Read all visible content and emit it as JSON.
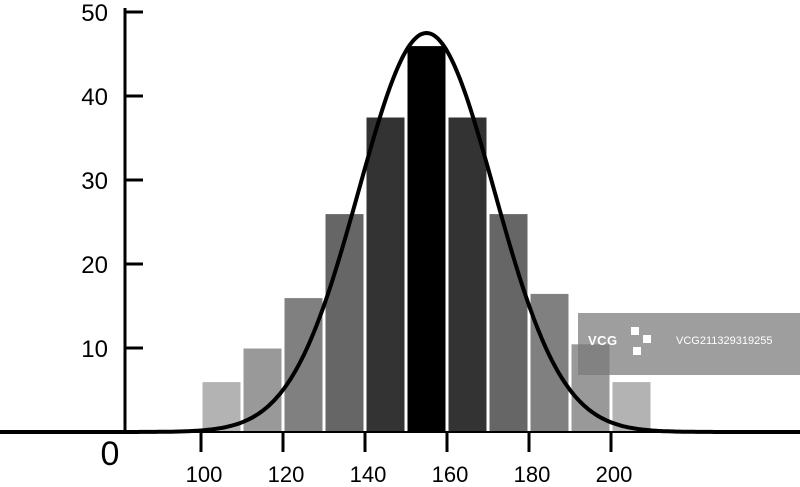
{
  "chart_data": {
    "type": "bar",
    "title": "",
    "xlabel": "",
    "ylabel": "",
    "origin_label": "0",
    "categories": [
      "105",
      "115",
      "125",
      "135",
      "145",
      "155",
      "165",
      "175",
      "185",
      "195",
      "205"
    ],
    "values": [
      6,
      10,
      16,
      26,
      37.5,
      46,
      37.5,
      26,
      16.5,
      10.5,
      6
    ],
    "bar_shades": [
      "#b3b3b3",
      "#999999",
      "#808080",
      "#666666",
      "#333333",
      "#000000",
      "#333333",
      "#666666",
      "#808080",
      "#999999",
      "#b3b3b3"
    ],
    "x_ticks": [
      100,
      120,
      140,
      160,
      180,
      200
    ],
    "y_ticks": [
      10,
      20,
      30,
      40,
      50
    ],
    "xlim": [
      65,
      215
    ],
    "ylim": [
      0,
      50
    ],
    "curve": {
      "type": "normal",
      "mean": 155,
      "peak": 47.5,
      "std": 16.5
    },
    "grid": false,
    "legend": "none"
  },
  "watermark": {
    "brand": "VCG",
    "id_text": "VCG211329319255"
  }
}
